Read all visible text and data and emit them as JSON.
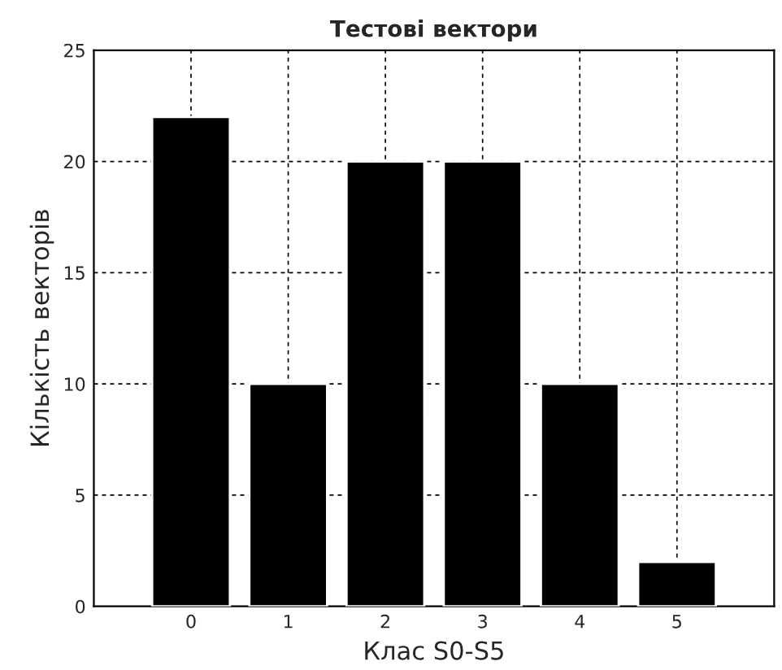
{
  "chart_data": {
    "type": "bar",
    "title": "Тестові вектори",
    "xlabel": "Клас S0-S5",
    "ylabel": "Кількість векторів",
    "x": [
      0,
      1,
      2,
      3,
      4,
      5
    ],
    "values": [
      22,
      10,
      20,
      20,
      10,
      2
    ],
    "color": "#000000",
    "xlim": [
      -1,
      6
    ],
    "xticks": [
      0,
      1,
      2,
      3,
      4,
      5
    ],
    "ylim": [
      0,
      25
    ],
    "yticks": [
      0,
      5,
      10,
      15,
      20,
      25
    ],
    "grid": true,
    "line_style": "dashed"
  }
}
